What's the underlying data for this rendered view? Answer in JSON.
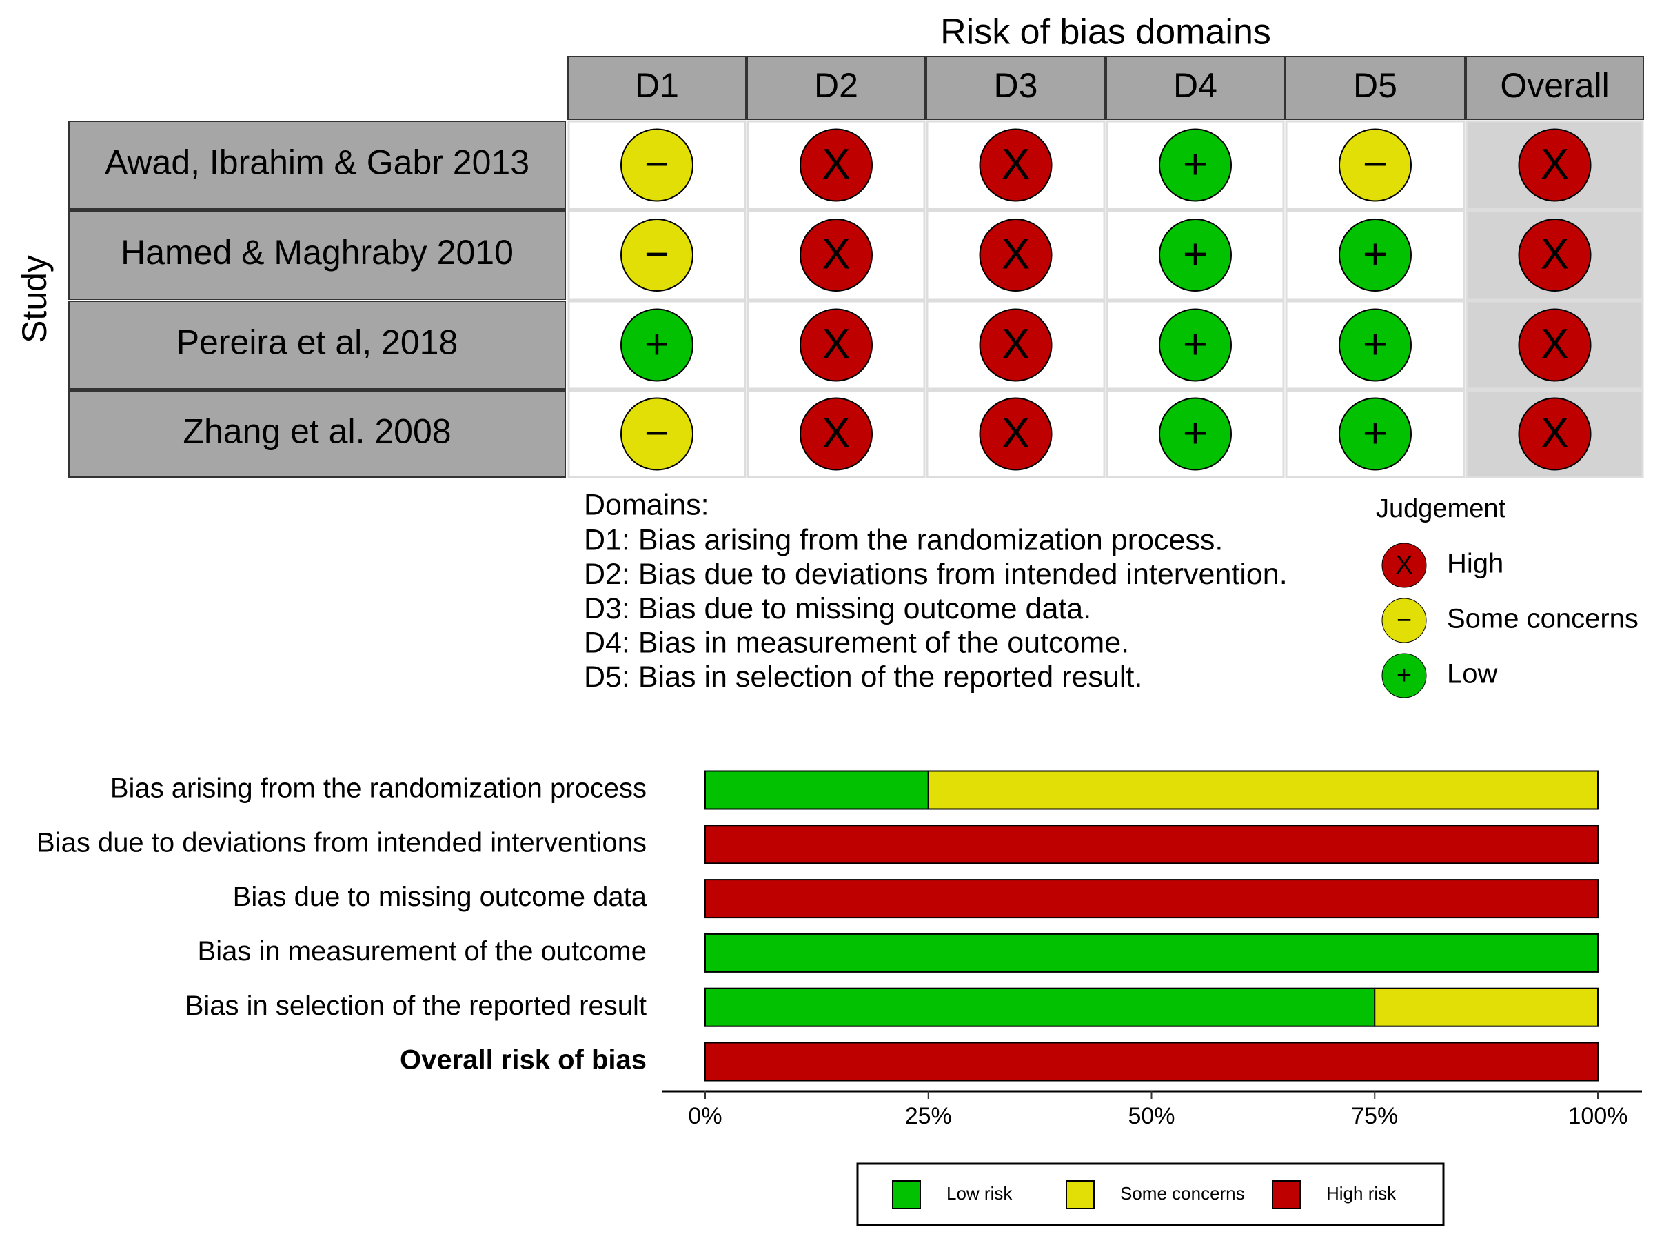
{
  "chart_data": [
    {
      "type": "traffic-light",
      "title": "Risk of bias domains",
      "y_label": "Study",
      "columns": [
        "D1",
        "D2",
        "D3",
        "D4",
        "D5",
        "Overall"
      ],
      "studies": [
        "Awad, Ibrahim & Gabr 2013",
        "Hamed & Maghraby 2010",
        "Pereira et al, 2018",
        "Zhang et al. 2008"
      ],
      "cells": [
        [
          "−",
          "X",
          "X",
          "+",
          "−",
          "X"
        ],
        [
          "−",
          "X",
          "X",
          "+",
          "+",
          "X"
        ],
        [
          "+",
          "X",
          "X",
          "+",
          "+",
          "X"
        ],
        [
          "−",
          "X",
          "X",
          "+",
          "+",
          "X"
        ]
      ],
      "levels": [
        {
          "symbol": "X",
          "label": "High",
          "color": "#BF0000"
        },
        {
          "symbol": "−",
          "label": "Some concerns",
          "color": "#E2DF07"
        },
        {
          "symbol": "+",
          "label": "Low",
          "color": "#02C100"
        }
      ],
      "legend_title": "Judgement",
      "notes_title": "Domains:",
      "notes": [
        "D1: Bias arising from the randomization process.",
        "D2: Bias due to deviations from intended intervention.",
        "D3: Bias due to missing outcome data.",
        "D4: Bias in measurement of the outcome.",
        "D5: Bias in selection of the reported result."
      ]
    },
    {
      "type": "stacked-hbar",
      "categories": [
        "Bias arising from the randomization process",
        "Bias due to deviations from intended interventions",
        "Bias due to missing outcome data",
        "Bias in measurement of the outcome",
        "Bias in selection of the reported result",
        "Overall risk of bias"
      ],
      "series": [
        {
          "name": "Low risk",
          "color": "#02C100",
          "values": [
            25,
            0,
            0,
            100,
            75,
            0
          ]
        },
        {
          "name": "Some concerns",
          "color": "#E2DF07",
          "values": [
            75,
            0,
            0,
            0,
            25,
            0
          ]
        },
        {
          "name": "High risk",
          "color": "#BF0000",
          "values": [
            0,
            100,
            100,
            0,
            0,
            100
          ]
        }
      ],
      "xlim": [
        0,
        100
      ],
      "xticks": [
        {
          "value": 0,
          "label": "0%"
        },
        {
          "value": 25,
          "label": "25%"
        },
        {
          "value": 50,
          "label": "50%"
        },
        {
          "value": 75,
          "label": "75%"
        },
        {
          "value": 100,
          "label": "100%"
        }
      ],
      "legend": "bottom"
    }
  ]
}
